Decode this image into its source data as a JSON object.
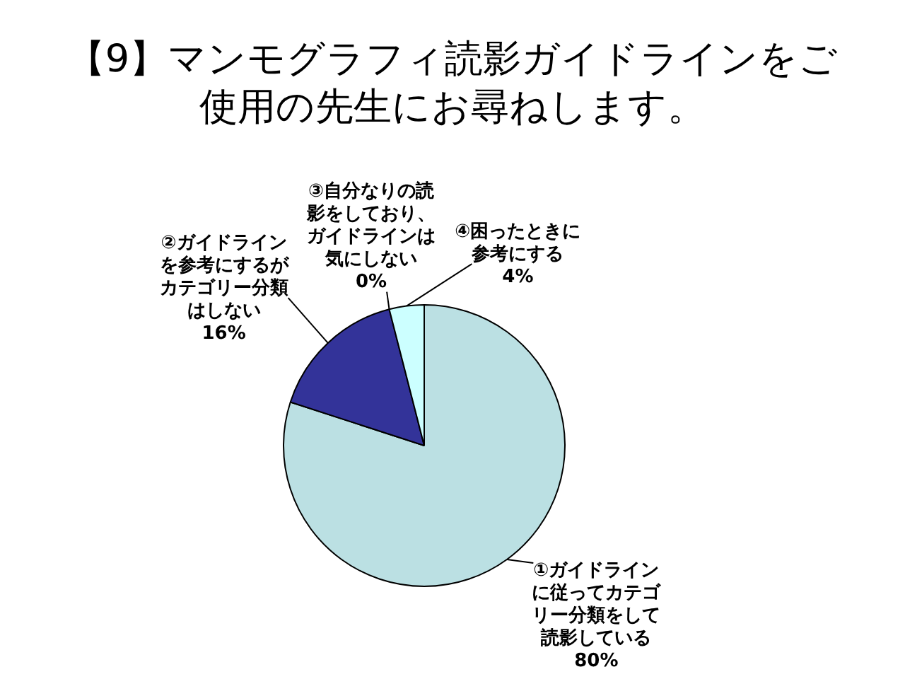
{
  "chart_data": {
    "type": "pie",
    "title": "【9】マンモグラフィ読影ガイドラインをご使用の先生にお尋ねします。",
    "categories": [
      "①ガイドラインに従ってカテゴリー分類をして読影している",
      "②ガイドラインを参考にするがカテゴリー分類はしない",
      "③自分なりの読影をしており、ガイドラインは気にしない",
      "④困ったときに参考にする"
    ],
    "values": [
      80,
      16,
      0,
      4
    ],
    "colors": [
      "#bbe0e3",
      "#333399",
      "#ffffcc",
      "#ccffff"
    ],
    "value_labels": [
      "80%",
      "16%",
      "0%",
      "4%"
    ]
  }
}
